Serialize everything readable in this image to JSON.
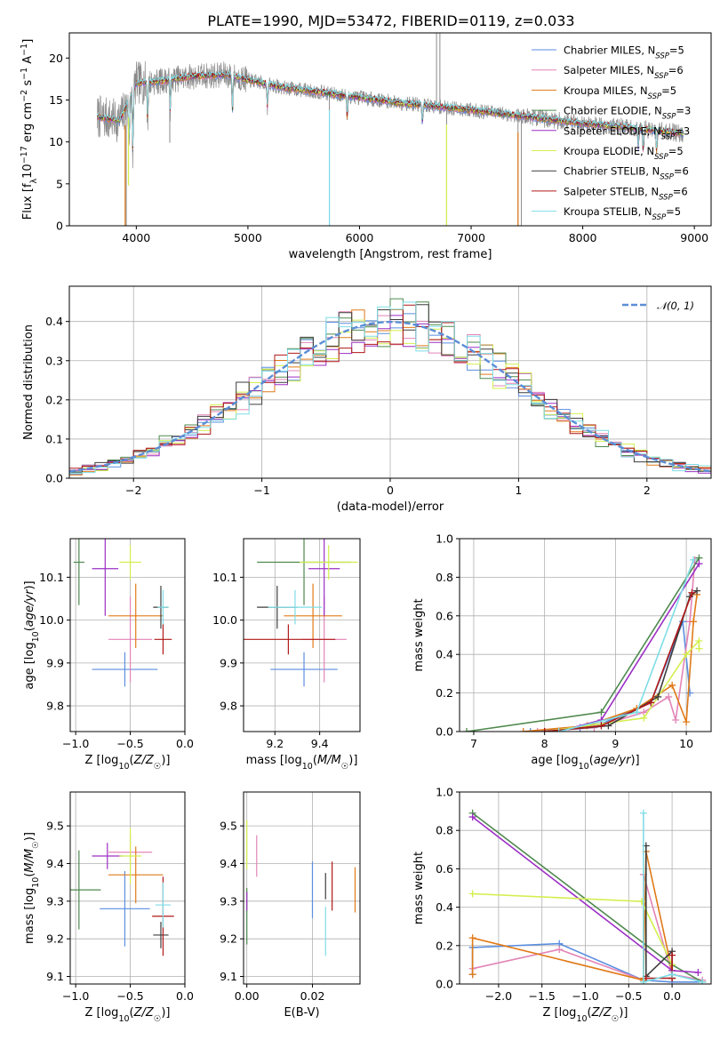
{
  "figure": {
    "title": "PLATE=1990, MJD=53472, FIBERID=0119, z=0.033"
  },
  "colors": {
    "Chabrier MILES": "#5b8ee0",
    "Salpeter MILES": "#e384b6",
    "Kroupa MILES": "#e07a18",
    "Chabrier ELODIE": "#4f8a4f",
    "Salpeter ELODIE": "#9c2fc4",
    "Kroupa ELODIE": "#d2ef4e",
    "Chabrier STELIB": "#3d3d3d",
    "Salpeter STELIB": "#b01818",
    "Kroupa STELIB": "#7fdde6",
    "normal_curve": "#5b8ed6",
    "data_spectrum": "#8a8a8a"
  },
  "chart_data": [
    {
      "type": "line",
      "id": "spectrum",
      "xlabel": "wavelength [Angstrom, rest frame]",
      "ylabel": "Flux [f_λ 10^-17 erg cm^-2 s^-1 A^-1]",
      "xlim": [
        3400,
        9150
      ],
      "ylim": [
        0,
        23
      ],
      "xticks": [
        4000,
        5000,
        6000,
        7000,
        8000,
        9000
      ],
      "yticks": [
        0,
        5,
        10,
        15,
        20
      ],
      "grid": false,
      "legend_position": "upper-right",
      "x_start": 3650,
      "x_end": 8900,
      "continuum_knots": [
        [
          3650,
          13
        ],
        [
          3850,
          12.5
        ],
        [
          4000,
          17
        ],
        [
          4200,
          17.2
        ],
        [
          4500,
          17.8
        ],
        [
          4800,
          18.0
        ],
        [
          5000,
          17.4
        ],
        [
          5300,
          16.5
        ],
        [
          5600,
          16.0
        ],
        [
          6000,
          15.3
        ],
        [
          6400,
          14.6
        ],
        [
          7000,
          13.8
        ],
        [
          7500,
          13.0
        ],
        [
          8000,
          12.2
        ],
        [
          8500,
          11.6
        ],
        [
          8900,
          11.0
        ]
      ],
      "absorption_features": [
        [
          3934,
          6.5
        ],
        [
          3969,
          8
        ],
        [
          4102,
          5
        ],
        [
          4304,
          4
        ],
        [
          4861,
          4.5
        ],
        [
          5175,
          3
        ],
        [
          5890,
          3
        ],
        [
          6563,
          2.5
        ],
        [
          8498,
          2.5
        ],
        [
          8542,
          3
        ],
        [
          8662,
          3
        ]
      ],
      "spikes": [
        [
          3910,
          0
        ],
        [
          4300,
          9.9
        ],
        [
          5730,
          0
        ],
        [
          6690,
          23
        ],
        [
          6720,
          23
        ],
        [
          6780,
          0
        ],
        [
          7420,
          0
        ],
        [
          7450,
          0
        ]
      ],
      "legend": [
        {
          "label": "Chabrier MILES, N",
          "sub": "SSP",
          "value": "=5"
        },
        {
          "label": "Salpeter MILES, N",
          "sub": "SSP",
          "value": "=6"
        },
        {
          "label": "Kroupa MILES, N",
          "sub": "SSP",
          "value": "=5"
        },
        {
          "label": "Chabrier ELODIE, N",
          "sub": "SSP",
          "value": "=3"
        },
        {
          "label": "Salpeter ELODIE, N",
          "sub": "SSP",
          "value": "=3"
        },
        {
          "label": "Kroupa ELODIE, N",
          "sub": "SSP",
          "value": "=5"
        },
        {
          "label": "Chabrier STELIB, N",
          "sub": "SSP",
          "value": "=6"
        },
        {
          "label": "Salpeter STELIB, N",
          "sub": "SSP",
          "value": "=6"
        },
        {
          "label": "Kroupa STELIB, N",
          "sub": "SSP",
          "value": "=5"
        }
      ]
    },
    {
      "type": "line",
      "id": "residuals",
      "xlabel": "(data-model)/error",
      "ylabel": "Normed distribution",
      "xlim": [
        -2.5,
        2.5
      ],
      "ylim": [
        0,
        0.49
      ],
      "xticks": [
        -2,
        -1,
        0,
        1,
        2
      ],
      "yticks": [
        0.0,
        0.1,
        0.2,
        0.3,
        0.4
      ],
      "grid": true,
      "legend_position": "upper-right",
      "legend_label": "𝒩(0, 1)",
      "bin_edges_start": -2.6,
      "bin_width": 0.1,
      "hist_seeds": [
        11,
        23,
        37,
        41,
        53,
        67,
        71,
        83,
        97
      ],
      "normal_curve": {
        "mean": 0,
        "sigma": 1
      }
    },
    {
      "type": "scatter",
      "id": "age_vs_Z",
      "xlabel": "Z [log10(Z/Z☉)]",
      "ylabel": "age  [log10(age/yr)]",
      "xlim": [
        -1.05,
        0.0
      ],
      "ylim": [
        9.74,
        10.19
      ],
      "xticks": [
        -1.0,
        -0.5,
        0.0
      ],
      "yticks": [
        9.8,
        9.9,
        10.0,
        10.1
      ],
      "grid": true,
      "points": [
        {
          "model": "Chabrier MILES",
          "x": -0.55,
          "xerr": 0.3,
          "y": 9.885,
          "yerr": 0.08
        },
        {
          "model": "Salpeter MILES",
          "x": -0.5,
          "xerr": 0.2,
          "y": 9.955,
          "yerr": 0.2
        },
        {
          "model": "Kroupa MILES",
          "x": -0.45,
          "xerr": 0.25,
          "y": 10.01,
          "yerr": 0.15
        },
        {
          "model": "Chabrier ELODIE",
          "x": -0.97,
          "xerr": 0.05,
          "y": 10.135,
          "yerr": 0.2
        },
        {
          "model": "Salpeter ELODIE",
          "x": -0.73,
          "xerr": 0.12,
          "y": 10.12,
          "yerr": 0.22
        },
        {
          "model": "Kroupa ELODIE",
          "x": -0.5,
          "xerr": 0.1,
          "y": 10.135,
          "yerr": 0.08
        },
        {
          "model": "Chabrier STELIB",
          "x": -0.22,
          "xerr": 0.07,
          "y": 10.03,
          "yerr": 0.1
        },
        {
          "model": "Salpeter STELIB",
          "x": -0.2,
          "xerr": 0.08,
          "y": 9.955,
          "yerr": 0.07
        },
        {
          "model": "Kroupa STELIB",
          "x": -0.2,
          "xerr": 0.05,
          "y": 10.03,
          "yerr": 0.08
        }
      ]
    },
    {
      "type": "scatter",
      "id": "age_vs_mass",
      "xlabel": "mass [log10(M/M☉)]",
      "ylabel": "",
      "xlim": [
        9.06,
        9.58
      ],
      "ylim": [
        9.74,
        10.19
      ],
      "xticks": [
        9.2,
        9.4
      ],
      "yticks": [
        9.8,
        9.9,
        10.0,
        10.1
      ],
      "grid": true,
      "points": [
        {
          "model": "Chabrier MILES",
          "x": 9.33,
          "xerr": 0.15,
          "y": 9.885,
          "yerr": 0.08
        },
        {
          "model": "Salpeter MILES",
          "x": 9.42,
          "xerr": 0.1,
          "y": 9.955,
          "yerr": 0.2
        },
        {
          "model": "Kroupa MILES",
          "x": 9.37,
          "xerr": 0.13,
          "y": 10.01,
          "yerr": 0.15
        },
        {
          "model": "Chabrier ELODIE",
          "x": 9.33,
          "xerr": 0.21,
          "y": 10.135,
          "yerr": 0.2
        },
        {
          "model": "Salpeter ELODIE",
          "x": 9.42,
          "xerr": 0.07,
          "y": 10.12,
          "yerr": 0.22
        },
        {
          "model": "Kroupa ELODIE",
          "x": 9.44,
          "xerr": 0.13,
          "y": 10.135,
          "yerr": 0.08
        },
        {
          "model": "Chabrier STELIB",
          "x": 9.21,
          "xerr": 0.09,
          "y": 10.03,
          "yerr": 0.1
        },
        {
          "model": "Salpeter STELIB",
          "x": 9.26,
          "xerr": 0.21,
          "y": 9.955,
          "yerr": 0.07
        },
        {
          "model": "Kroupa STELIB",
          "x": 9.29,
          "xerr": 0.12,
          "y": 10.03,
          "yerr": 0.08
        }
      ]
    },
    {
      "type": "line",
      "id": "massweight_vs_age",
      "xlabel": "age  [log10(age/yr)]",
      "ylabel": "mass weight",
      "xlim": [
        6.8,
        10.35
      ],
      "ylim": [
        0.0,
        1.0
      ],
      "xticks": [
        7,
        8,
        9,
        10
      ],
      "yticks": [
        0.0,
        0.2,
        0.4,
        0.6,
        0.8,
        1.0
      ],
      "grid": true,
      "series": [
        {
          "name": "Chabrier MILES",
          "points": [
            [
              7.8,
              0.0
            ],
            [
              8.5,
              0.02
            ],
            [
              8.8,
              0.04
            ],
            [
              9.5,
              0.15
            ],
            [
              9.95,
              0.57
            ],
            [
              10.05,
              0.2
            ]
          ]
        },
        {
          "name": "Salpeter MILES",
          "points": [
            [
              7.9,
              0.0
            ],
            [
              8.7,
              0.02
            ],
            [
              9.4,
              0.1
            ],
            [
              9.75,
              0.18
            ],
            [
              9.85,
              0.06
            ],
            [
              10.05,
              0.57
            ],
            [
              10.12,
              0.89
            ]
          ]
        },
        {
          "name": "Kroupa MILES",
          "points": [
            [
              7.7,
              0.0
            ],
            [
              8.6,
              0.03
            ],
            [
              9.3,
              0.12
            ],
            [
              9.8,
              0.24
            ],
            [
              10.0,
              0.05
            ],
            [
              10.1,
              0.57
            ],
            [
              10.15,
              0.71
            ]
          ]
        },
        {
          "name": "Chabrier ELODIE",
          "points": [
            [
              6.9,
              0.0
            ],
            [
              8.8,
              0.1
            ],
            [
              10.18,
              0.9
            ]
          ]
        },
        {
          "name": "Salpeter ELODIE",
          "points": [
            [
              8.2,
              0.0
            ],
            [
              8.8,
              0.06
            ],
            [
              10.18,
              0.87
            ]
          ]
        },
        {
          "name": "Kroupa ELODIE",
          "points": [
            [
              8.0,
              0.0
            ],
            [
              9.4,
              0.07
            ],
            [
              10.0,
              0.4
            ],
            [
              10.18,
              0.47
            ],
            [
              10.18,
              0.43
            ]
          ]
        },
        {
          "name": "Chabrier STELIB",
          "points": [
            [
              8.0,
              0.0
            ],
            [
              8.9,
              0.03
            ],
            [
              9.6,
              0.18
            ],
            [
              10.05,
              0.7
            ],
            [
              10.15,
              0.73
            ]
          ]
        },
        {
          "name": "Salpeter STELIB",
          "points": [
            [
              8.0,
              0.0
            ],
            [
              8.8,
              0.03
            ],
            [
              9.5,
              0.15
            ],
            [
              10.08,
              0.72
            ]
          ]
        },
        {
          "name": "Kroupa STELIB",
          "points": [
            [
              8.2,
              0.0
            ],
            [
              9.3,
              0.1
            ],
            [
              10.1,
              0.89
            ]
          ]
        }
      ]
    },
    {
      "type": "scatter",
      "id": "mass_vs_Z",
      "xlabel": "Z [log10(Z/Z☉)]",
      "ylabel": "mass [log10(M/M☉)]",
      "xlim": [
        -1.05,
        0.0
      ],
      "ylim": [
        9.08,
        9.59
      ],
      "xticks": [
        -1.0,
        -0.5,
        0.0
      ],
      "yticks": [
        9.1,
        9.2,
        9.3,
        9.4,
        9.5
      ],
      "grid": true,
      "points": [
        {
          "model": "Chabrier MILES",
          "x": -0.55,
          "xerr": 0.23,
          "y": 9.28,
          "yerr": 0.2
        },
        {
          "model": "Salpeter MILES",
          "x": -0.5,
          "xerr": 0.2,
          "y": 9.43,
          "yerr": 0.1
        },
        {
          "model": "Kroupa MILES",
          "x": -0.45,
          "xerr": 0.25,
          "y": 9.37,
          "yerr": 0.15
        },
        {
          "model": "Chabrier ELODIE",
          "x": -0.97,
          "xerr": 0.2,
          "y": 9.33,
          "yerr": 0.21
        },
        {
          "model": "Salpeter ELODIE",
          "x": -0.71,
          "xerr": 0.14,
          "y": 9.42,
          "yerr": 0.07
        },
        {
          "model": "Kroupa ELODIE",
          "x": -0.5,
          "xerr": 0.1,
          "y": 9.42,
          "yerr": 0.15
        },
        {
          "model": "Chabrier STELIB",
          "x": -0.22,
          "xerr": 0.07,
          "y": 9.21,
          "yerr": 0.07
        },
        {
          "model": "Salpeter STELIB",
          "x": -0.2,
          "xerr": 0.1,
          "y": 9.26,
          "yerr": 0.21
        },
        {
          "model": "Kroupa STELIB",
          "x": -0.2,
          "xerr": 0.07,
          "y": 9.29,
          "yerr": 0.12
        }
      ]
    },
    {
      "type": "scatter",
      "id": "mass_vs_EBV",
      "xlabel": "E(B-V)",
      "ylabel": "",
      "xlim": [
        -0.001,
        0.0345
      ],
      "ylim": [
        9.08,
        9.59
      ],
      "xticks": [
        0.0,
        0.02
      ],
      "yticks": [
        9.1,
        9.2,
        9.3,
        9.4,
        9.5
      ],
      "grid": true,
      "points": [
        {
          "model": "Chabrier MILES",
          "x": 0.02,
          "y": 9.33,
          "yerr": 0.15
        },
        {
          "model": "Salpeter MILES",
          "x": 0.003,
          "y": 9.42,
          "yerr": 0.11
        },
        {
          "model": "Kroupa MILES",
          "x": 0.033,
          "y": 9.33,
          "yerr": 0.12
        },
        {
          "model": "Chabrier ELODIE",
          "x": 0.0,
          "y": 9.26,
          "yerr": 0.15
        },
        {
          "model": "Salpeter ELODIE",
          "x": 0.0,
          "y": 9.3,
          "yerr": 0.05
        },
        {
          "model": "Kroupa ELODIE",
          "x": 0.0,
          "y": 9.45,
          "yerr": 0.13
        },
        {
          "model": "Chabrier STELIB",
          "x": 0.024,
          "y": 9.34,
          "yerr": 0.07
        },
        {
          "model": "Salpeter STELIB",
          "x": 0.026,
          "y": 9.34,
          "yerr": 0.13
        },
        {
          "model": "Kroupa STELIB",
          "x": 0.024,
          "y": 9.22,
          "yerr": 0.13
        }
      ]
    },
    {
      "type": "line",
      "id": "massweight_vs_Z",
      "xlabel": "Z [log10(Z/Z☉)]",
      "ylabel": "mass weight",
      "xlim": [
        -2.45,
        0.45
      ],
      "ylim": [
        0.0,
        1.0
      ],
      "xticks": [
        -2.0,
        -1.5,
        -1.0,
        -0.5,
        0.0
      ],
      "yticks": [
        0.0,
        0.2,
        0.4,
        0.6,
        0.8,
        1.0
      ],
      "grid": true,
      "series": [
        {
          "name": "Chabrier MILES",
          "points": [
            [
              -2.3,
              0.05
            ],
            [
              -2.3,
              0.19
            ],
            [
              -1.3,
              0.21
            ],
            [
              -0.33,
              0.02
            ],
            [
              0.0,
              0.01
            ],
            [
              0.35,
              0.01
            ]
          ]
        },
        {
          "name": "Salpeter MILES",
          "points": [
            [
              -2.3,
              0.08
            ],
            [
              -1.3,
              0.18
            ],
            [
              -0.33,
              0.02
            ],
            [
              -0.33,
              0.57
            ],
            [
              0.0,
              0.05
            ],
            [
              0.35,
              0.02
            ]
          ]
        },
        {
          "name": "Kroupa MILES",
          "points": [
            [
              -2.3,
              0.05
            ],
            [
              -2.3,
              0.24
            ],
            [
              -0.33,
              0.02
            ],
            [
              -0.33,
              0.03
            ],
            [
              -0.3,
              0.69
            ],
            [
              0.0,
              0.07
            ],
            [
              0.0,
              0.03
            ]
          ]
        },
        {
          "name": "Chabrier ELODIE",
          "points": [
            [
              -2.3,
              0.89
            ],
            [
              0.0,
              0.1
            ],
            [
              0.35,
              0.01
            ]
          ]
        },
        {
          "name": "Salpeter ELODIE",
          "points": [
            [
              -2.3,
              0.87
            ],
            [
              0.0,
              0.07
            ],
            [
              0.3,
              0.06
            ]
          ]
        },
        {
          "name": "Kroupa ELODIE",
          "points": [
            [
              -2.3,
              0.47
            ],
            [
              -0.35,
              0.43
            ],
            [
              0.0,
              0.1
            ]
          ]
        },
        {
          "name": "Chabrier STELIB",
          "points": [
            [
              -0.3,
              0.72
            ],
            [
              -0.3,
              0.04
            ],
            [
              0.0,
              0.17
            ],
            [
              0.0,
              0.03
            ]
          ]
        },
        {
          "name": "Salpeter STELIB",
          "points": [
            [
              -0.3,
              0.03
            ],
            [
              0.0,
              0.03
            ],
            [
              0.0,
              0.15
            ]
          ]
        },
        {
          "name": "Kroupa STELIB",
          "points": [
            [
              -0.33,
              0.89
            ],
            [
              -0.33,
              0.01
            ],
            [
              0.0,
              0.05
            ],
            [
              0.35,
              0.01
            ]
          ]
        }
      ]
    }
  ]
}
